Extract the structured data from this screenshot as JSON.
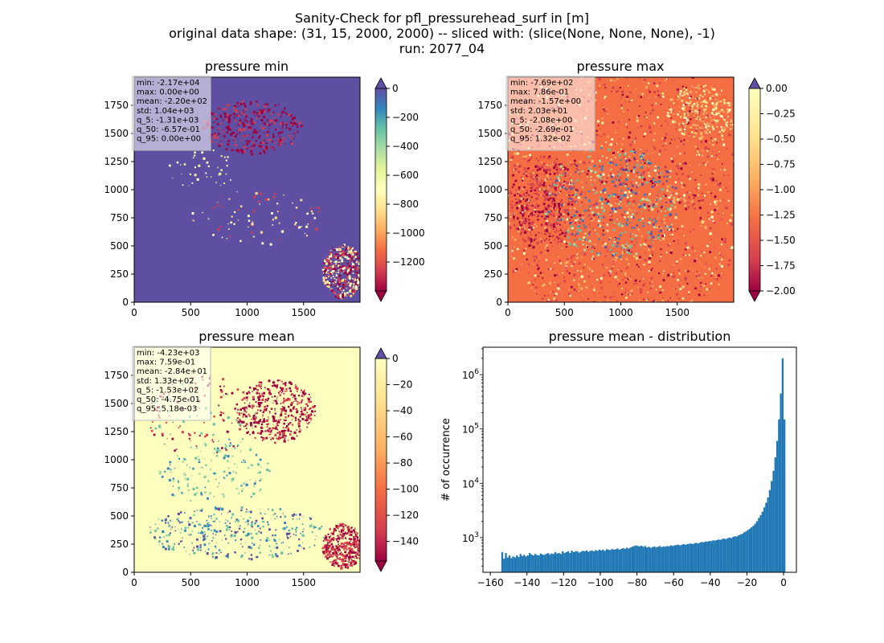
{
  "figure": {
    "title_lines": [
      "Sanity-Check for pfl_pressurehead_surf in [m]",
      "original data shape: (31, 15, 2000, 2000) -- sliced with: (slice(None, None, None), -1)",
      "run: 2077_04"
    ]
  },
  "chart_data": [
    {
      "type": "heatmap",
      "title": "pressure min",
      "x_ticks": [
        "0",
        "500",
        "1000",
        "1500"
      ],
      "y_ticks": [
        "0",
        "250",
        "500",
        "750",
        "1000",
        "1250",
        "1500",
        "1750"
      ],
      "xlim": [
        0,
        2000
      ],
      "ylim": [
        0,
        2000
      ],
      "colormap": "Spectral",
      "colorbar": {
        "range": [
          -1400,
          0
        ],
        "ticks": [
          0,
          -200,
          -400,
          -600,
          -800,
          -1000,
          -1200
        ],
        "extend": "both"
      },
      "stats": [
        "min: -2.17e+04",
        "max: 0.00e+00",
        "mean: -2.20e+02",
        "std: 1.04e+03",
        "q_5: -1.31e+03",
        "q_50: -6.57e-01",
        "q_95: 0.00e+00"
      ],
      "background_color": "#5e4fa2"
    },
    {
      "type": "heatmap",
      "title": "pressure max",
      "x_ticks": [
        "0",
        "500",
        "1000",
        "1500"
      ],
      "y_ticks": [
        "0",
        "250",
        "500",
        "750",
        "1000",
        "1250",
        "1500",
        "1750"
      ],
      "xlim": [
        0,
        2000
      ],
      "ylim": [
        0,
        2000
      ],
      "colormap": "Spectral",
      "colorbar": {
        "range": [
          -2.0,
          0.0
        ],
        "ticks": [
          0.0,
          -0.25,
          -0.5,
          -0.75,
          -1.0,
          -1.25,
          -1.5,
          -1.75,
          -2.0
        ],
        "tick_labels": [
          "0.00",
          "−0.25",
          "−0.50",
          "−0.75",
          "−1.00",
          "−1.25",
          "−1.50",
          "−1.75",
          "−2.00"
        ],
        "extend": "max"
      },
      "stats": [
        "min: -7.69e+02",
        "max: 7.86e-01",
        "mean: -1.57e+00",
        "std: 2.03e+01",
        "q_5: -2.08e+00",
        "q_50: -2.69e-01",
        "q_95: 1.32e-02"
      ],
      "background_color": "#f46d43"
    },
    {
      "type": "heatmap",
      "title": "pressure mean",
      "x_ticks": [
        "0",
        "500",
        "1000",
        "1500"
      ],
      "y_ticks": [
        "0",
        "250",
        "500",
        "750",
        "1000",
        "1250",
        "1500",
        "1750"
      ],
      "xlim": [
        0,
        2000
      ],
      "ylim": [
        0,
        2000
      ],
      "colormap": "Spectral",
      "colorbar": {
        "range": [
          -155,
          0
        ],
        "ticks": [
          0,
          -20,
          -40,
          -60,
          -80,
          -100,
          -120,
          -140
        ],
        "extend": "both"
      },
      "stats": [
        "min: -4.23e+03",
        "max: 7.59e-01",
        "mean: -2.84e+01",
        "std: 1.33e+02",
        "q_5: -1.53e+02",
        "q_50: -4.75e-01",
        "q_95: 5.18e-03"
      ],
      "background_color": "#feffbe"
    },
    {
      "type": "bar",
      "title": "pressure mean - distribution",
      "ylabel": "# of occurrence",
      "xlabel": "",
      "x_ticks": [
        "−160",
        "−140",
        "−120",
        "−100",
        "−80",
        "−60",
        "−40",
        "−20",
        "0"
      ],
      "x_tick_values": [
        -160,
        -140,
        -120,
        -100,
        -80,
        -60,
        -40,
        -20,
        0
      ],
      "xlim": [
        -164,
        7
      ],
      "ylim": [
        230,
        3200000
      ],
      "y_scale": "log",
      "y_ticks": [
        1000,
        10000,
        100000,
        1000000
      ],
      "y_ticks_labels": [
        [
          "10",
          "3"
        ],
        [
          "10",
          "4"
        ],
        [
          "10",
          "5"
        ],
        [
          "10",
          "6"
        ]
      ],
      "bin_width": 1.0,
      "bins": [
        [
          -153.5,
          540
        ],
        [
          -152.5,
          410
        ],
        [
          -151.5,
          520
        ],
        [
          -150.5,
          430
        ],
        [
          -149.5,
          470
        ],
        [
          -148.5,
          420
        ],
        [
          -147.5,
          450
        ],
        [
          -146.5,
          430
        ],
        [
          -145.5,
          470
        ],
        [
          -144.5,
          440
        ],
        [
          -143.5,
          500
        ],
        [
          -142.5,
          460
        ],
        [
          -141.5,
          480
        ],
        [
          -140.5,
          450
        ],
        [
          -139.5,
          470
        ],
        [
          -138.5,
          520
        ],
        [
          -137.5,
          490
        ],
        [
          -136.5,
          470
        ],
        [
          -135.5,
          500
        ],
        [
          -134.5,
          480
        ],
        [
          -133.5,
          470
        ],
        [
          -132.5,
          510
        ],
        [
          -131.5,
          490
        ],
        [
          -130.5,
          480
        ],
        [
          -129.5,
          500
        ],
        [
          -128.5,
          520
        ],
        [
          -127.5,
          490
        ],
        [
          -126.5,
          510
        ],
        [
          -125.5,
          500
        ],
        [
          -124.5,
          540
        ],
        [
          -123.5,
          510
        ],
        [
          -122.5,
          520
        ],
        [
          -121.5,
          500
        ],
        [
          -120.5,
          560
        ],
        [
          -119.5,
          520
        ],
        [
          -118.5,
          540
        ],
        [
          -117.5,
          560
        ],
        [
          -116.5,
          520
        ],
        [
          -115.5,
          580
        ],
        [
          -114.5,
          540
        ],
        [
          -113.5,
          560
        ],
        [
          -112.5,
          560
        ],
        [
          -111.5,
          530
        ],
        [
          -110.5,
          550
        ],
        [
          -109.5,
          570
        ],
        [
          -108.5,
          560
        ],
        [
          -107.5,
          580
        ],
        [
          -106.5,
          550
        ],
        [
          -105.5,
          570
        ],
        [
          -104.5,
          580
        ],
        [
          -103.5,
          560
        ],
        [
          -102.5,
          590
        ],
        [
          -101.5,
          570
        ],
        [
          -100.5,
          600
        ],
        [
          -99.5,
          580
        ],
        [
          -98.5,
          600
        ],
        [
          -97.5,
          570
        ],
        [
          -96.5,
          610
        ],
        [
          -95.5,
          600
        ],
        [
          -94.5,
          590
        ],
        [
          -93.5,
          620
        ],
        [
          -92.5,
          600
        ],
        [
          -91.5,
          610
        ],
        [
          -90.5,
          630
        ],
        [
          -89.5,
          600
        ],
        [
          -88.5,
          620
        ],
        [
          -87.5,
          640
        ],
        [
          -86.5,
          620
        ],
        [
          -85.5,
          650
        ],
        [
          -84.5,
          630
        ],
        [
          -83.5,
          660
        ],
        [
          -82.5,
          680
        ],
        [
          -81.5,
          700
        ],
        [
          -80.5,
          720
        ],
        [
          -79.5,
          700
        ],
        [
          -78.5,
          690
        ],
        [
          -77.5,
          710
        ],
        [
          -76.5,
          680
        ],
        [
          -75.5,
          700
        ],
        [
          -74.5,
          660
        ],
        [
          -73.5,
          680
        ],
        [
          -72.5,
          650
        ],
        [
          -71.5,
          670
        ],
        [
          -70.5,
          690
        ],
        [
          -69.5,
          660
        ],
        [
          -68.5,
          680
        ],
        [
          -67.5,
          700
        ],
        [
          -66.5,
          670
        ],
        [
          -65.5,
          690
        ],
        [
          -64.5,
          680
        ],
        [
          -63.5,
          700
        ],
        [
          -62.5,
          690
        ],
        [
          -61.5,
          720
        ],
        [
          -60.5,
          700
        ],
        [
          -59.5,
          720
        ],
        [
          -58.5,
          730
        ],
        [
          -57.5,
          740
        ],
        [
          -56.5,
          720
        ],
        [
          -55.5,
          740
        ],
        [
          -54.5,
          760
        ],
        [
          -53.5,
          740
        ],
        [
          -52.5,
          760
        ],
        [
          -51.5,
          770
        ],
        [
          -50.5,
          780
        ],
        [
          -49.5,
          760
        ],
        [
          -48.5,
          790
        ],
        [
          -47.5,
          800
        ],
        [
          -46.5,
          780
        ],
        [
          -45.5,
          810
        ],
        [
          -44.5,
          830
        ],
        [
          -43.5,
          820
        ],
        [
          -42.5,
          850
        ],
        [
          -41.5,
          840
        ],
        [
          -40.5,
          870
        ],
        [
          -39.5,
          860
        ],
        [
          -38.5,
          890
        ],
        [
          -37.5,
          880
        ],
        [
          -36.5,
          900
        ],
        [
          -35.5,
          920
        ],
        [
          -34.5,
          910
        ],
        [
          -33.5,
          940
        ],
        [
          -32.5,
          960
        ],
        [
          -31.5,
          940
        ],
        [
          -30.5,
          980
        ],
        [
          -29.5,
          1000
        ],
        [
          -28.5,
          980
        ],
        [
          -27.5,
          1030
        ],
        [
          -26.5,
          1060
        ],
        [
          -25.5,
          1050
        ],
        [
          -24.5,
          1100
        ],
        [
          -23.5,
          1140
        ],
        [
          -22.5,
          1180
        ],
        [
          -21.5,
          1250
        ],
        [
          -20.5,
          1300
        ],
        [
          -19.5,
          1380
        ],
        [
          -18.5,
          1450
        ],
        [
          -17.5,
          1550
        ],
        [
          -16.5,
          1650
        ],
        [
          -15.5,
          1800
        ],
        [
          -14.5,
          2000
        ],
        [
          -13.5,
          2300
        ],
        [
          -12.5,
          2600
        ],
        [
          -11.5,
          3000
        ],
        [
          -10.5,
          3600
        ],
        [
          -9.5,
          4400
        ],
        [
          -8.5,
          5500
        ],
        [
          -7.5,
          7500
        ],
        [
          -6.5,
          11000
        ],
        [
          -5.5,
          17000
        ],
        [
          -4.5,
          30000
        ],
        [
          -3.5,
          60000
        ],
        [
          -2.5,
          150000
        ],
        [
          -1.5,
          450000
        ],
        [
          -0.5,
          2000000
        ],
        [
          0.5,
          150000
        ]
      ],
      "bar_color": "#1f77b4"
    }
  ]
}
